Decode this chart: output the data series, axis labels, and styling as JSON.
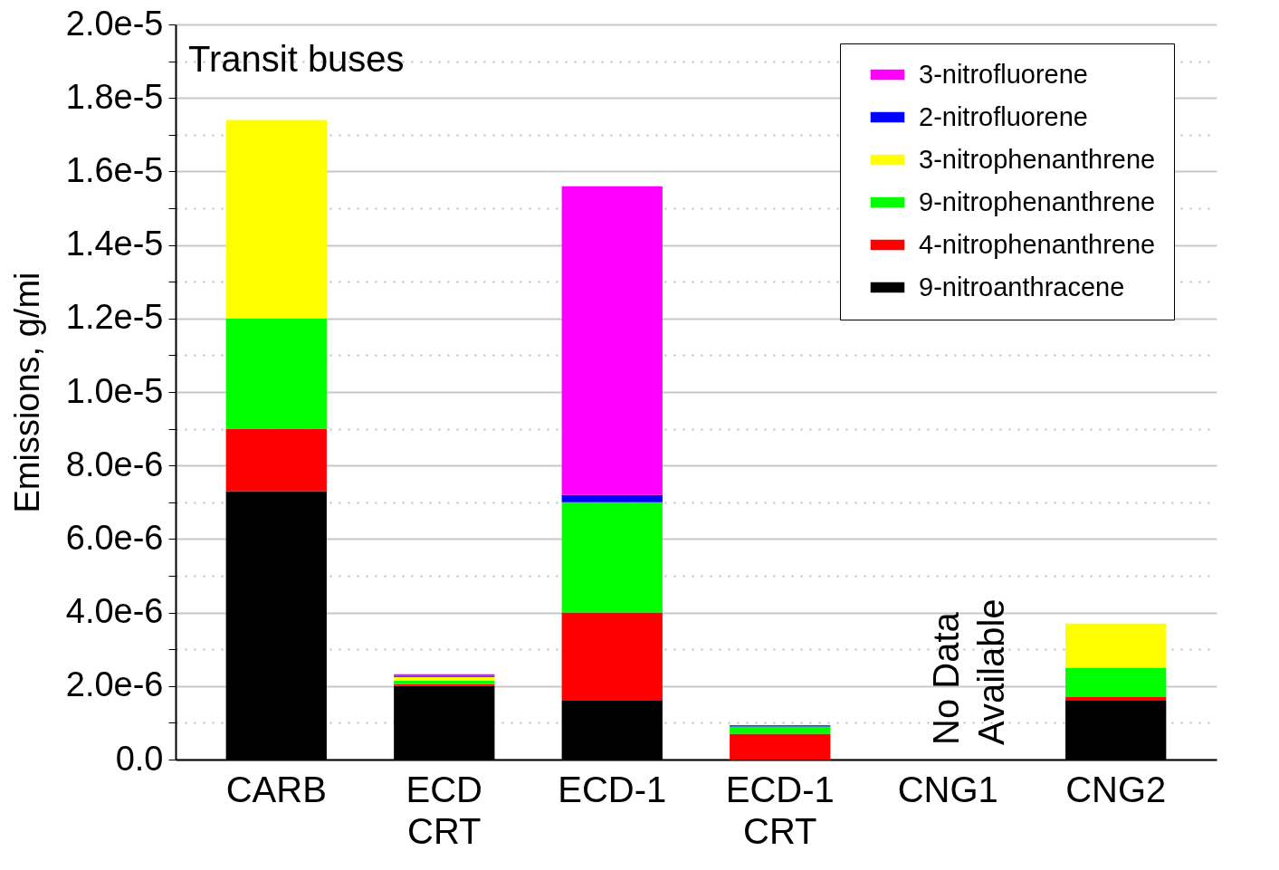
{
  "chart_data": {
    "type": "bar",
    "stacked": true,
    "ylabel": "Emissions, g/mi",
    "categories": [
      "CARB",
      "ECD CRT",
      "ECD-1",
      "ECD-1 CRT",
      "CNG1",
      "CNG2"
    ],
    "series": [
      {
        "name": "9-nitroanthracene",
        "color": "#000000",
        "values": [
          7.3e-06,
          2e-06,
          1.6e-06,
          0,
          null,
          1.6e-06
        ]
      },
      {
        "name": "4-nitrophenanthrene",
        "color": "#ff0000",
        "values": [
          1.7e-06,
          5e-08,
          2.4e-06,
          7e-07,
          null,
          1e-07
        ]
      },
      {
        "name": "9-nitrophenanthrene",
        "color": "#00ff00",
        "values": [
          3e-06,
          1e-07,
          3e-06,
          2e-07,
          null,
          8e-07
        ]
      },
      {
        "name": "3-nitrophenanthrene",
        "color": "#ffff00",
        "values": [
          5.4e-06,
          1e-07,
          0,
          0,
          null,
          1.2e-06
        ]
      },
      {
        "name": "2-nitrofluorene",
        "color": "#0000ff",
        "values": [
          0,
          3e-08,
          2e-07,
          3e-08,
          null,
          0
        ]
      },
      {
        "name": "3-nitrofluorene",
        "color": "#ff00ff",
        "values": [
          0,
          4e-08,
          8.4e-06,
          0,
          null,
          0
        ]
      }
    ],
    "ylim": [
      0,
      2e-05
    ],
    "yticks": [
      {
        "value": 0,
        "label": "0.0"
      },
      {
        "value": 1e-06,
        "label": null
      },
      {
        "value": 2e-06,
        "label": "2.0e-6"
      },
      {
        "value": 3e-06,
        "label": null
      },
      {
        "value": 4e-06,
        "label": "4.0e-6"
      },
      {
        "value": 5e-06,
        "label": null
      },
      {
        "value": 6e-06,
        "label": "6.0e-6"
      },
      {
        "value": 7e-06,
        "label": null
      },
      {
        "value": 8e-06,
        "label": "8.0e-6"
      },
      {
        "value": 9e-06,
        "label": null
      },
      {
        "value": 1e-05,
        "label": "1.0e-5"
      },
      {
        "value": 1.1e-05,
        "label": null
      },
      {
        "value": 1.2e-05,
        "label": "1.2e-5"
      },
      {
        "value": 1.3e-05,
        "label": null
      },
      {
        "value": 1.4e-05,
        "label": "1.4e-5"
      },
      {
        "value": 1.5e-05,
        "label": null
      },
      {
        "value": 1.6e-05,
        "label": "1.6e-5"
      },
      {
        "value": 1.7e-05,
        "label": null
      },
      {
        "value": 1.8e-05,
        "label": "1.8e-5"
      },
      {
        "value": 1.9e-05,
        "label": null
      },
      {
        "value": 2e-05,
        "label": "2.0e-5"
      }
    ],
    "grid": true,
    "legend": "top right",
    "annotations": [
      "Transit buses",
      "No Data\nAvailable"
    ]
  }
}
